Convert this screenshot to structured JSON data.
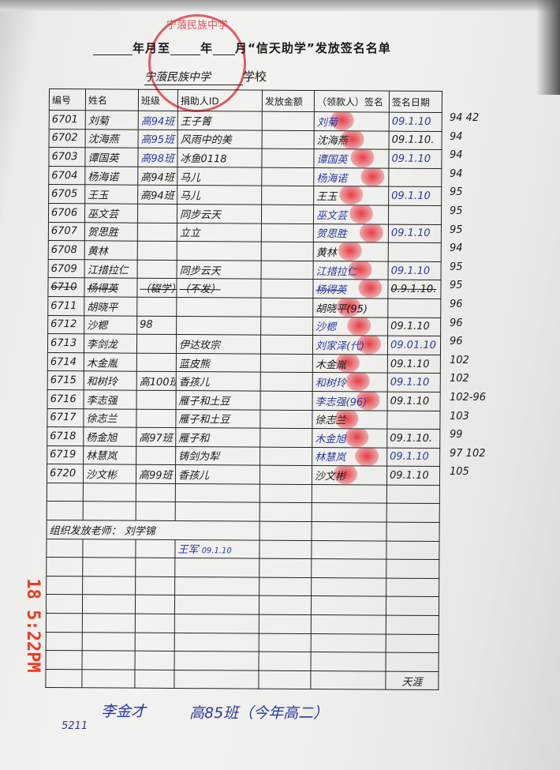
{
  "title": {
    "prefix": "年月至",
    "mid": "年",
    "suffix": "月“信天助学”发放签名名单"
  },
  "school": {
    "handwritten": "宁蒗民族中学",
    "suffix": "学校"
  },
  "stamp": {
    "text": "宁蒗民族中学"
  },
  "columns": [
    "编号",
    "姓名",
    "班级",
    "捐助人ID",
    "发放金额",
    "（领款人）签名",
    "签名日期"
  ],
  "rows": [
    {
      "id": "6701",
      "name": "刘菊",
      "class": "高94班",
      "donor": "王子箐",
      "sig": "刘菊",
      "date": "09.1.10",
      "side": "94 42",
      "blue": true
    },
    {
      "id": "6702",
      "name": "沈海燕",
      "class": "高95班",
      "donor": "风雨中的美",
      "sig": "沈海燕",
      "date": "09.1.10.",
      "side": "94",
      "blue": true
    },
    {
      "id": "6703",
      "name": "谭国英",
      "class": "高98班",
      "donor": "冰鱼0118",
      "sig": "谭国英",
      "date": "09.1.10",
      "side": "94",
      "blue": true
    },
    {
      "id": "6704",
      "name": "杨海诺",
      "class": "高94班",
      "donor": "马儿",
      "sig": "杨海诺",
      "date": "",
      "side": "94"
    },
    {
      "id": "6705",
      "name": "王玉",
      "class": "高94班",
      "donor": "马儿",
      "sig": "王玉",
      "date": "09.1.10",
      "side": "95"
    },
    {
      "id": "6706",
      "name": "巫文芸",
      "class": "",
      "donor": "同步云天",
      "sig": "巫文芸",
      "date": "",
      "side": "95"
    },
    {
      "id": "6707",
      "name": "贺思胜",
      "class": "",
      "donor": "立立",
      "sig": "贺思胜",
      "date": "09.1.10",
      "side": "95"
    },
    {
      "id": "6708",
      "name": "黄林",
      "class": "",
      "donor": "",
      "sig": "黄林",
      "date": "",
      "side": "94"
    },
    {
      "id": "6709",
      "name": "江措拉仁",
      "class": "",
      "donor": "同步云天",
      "sig": "江措拉仁",
      "date": "09.1.10",
      "side": "95"
    },
    {
      "id": "6710",
      "name": "杨得英",
      "class": "（辍学）",
      "donor": "（不发）",
      "sig": "杨得英",
      "date": "0.9.1.10.",
      "side": "95",
      "struck": true
    },
    {
      "id": "6711",
      "name": "胡晓平",
      "class": "",
      "donor": "",
      "sig": "胡晓平(95)",
      "date": "",
      "side": "96"
    },
    {
      "id": "6712",
      "name": "沙楒",
      "class": "98",
      "donor": "",
      "sig": "沙楒",
      "date": "09.1.10",
      "side": "96"
    },
    {
      "id": "6713",
      "name": "李剑龙",
      "class": "",
      "donor": "伊达玫宗",
      "sig": "刘家泽(代)",
      "date": "09.01.10",
      "side": "96"
    },
    {
      "id": "6714",
      "name": "木金胤",
      "class": "",
      "donor": "蓝皮熊",
      "sig": "木金胤",
      "date": "09.1.10",
      "side": "102"
    },
    {
      "id": "6715",
      "name": "和树玲",
      "class": "高100班",
      "donor": "香孩儿",
      "sig": "和树玲",
      "date": "09.1.10",
      "side": "102"
    },
    {
      "id": "6716",
      "name": "李志强",
      "class": "",
      "donor": "雁子和土豆",
      "sig": "李志强(96)",
      "date": "09.1.10",
      "side": "102-96"
    },
    {
      "id": "6717",
      "name": "徐志兰",
      "class": "",
      "donor": "雁子和土豆",
      "sig": "徐志兰",
      "date": "",
      "side": "103"
    },
    {
      "id": "6718",
      "name": "杨金旭",
      "class": "高97班",
      "donor": "雁子和",
      "sig": "木金旭",
      "date": "09.1.10.",
      "side": "99"
    },
    {
      "id": "6719",
      "name": "林慧岚",
      "class": "",
      "donor": "铸剑为犁",
      "sig": "林慧岚",
      "date": "09.1.10",
      "side": "97 102"
    },
    {
      "id": "6720",
      "name": "沙文彬",
      "class": "高99班",
      "donor": "香孩儿",
      "sig": "沙文彬",
      "date": "09.1.10",
      "side": "105"
    }
  ],
  "organizer": {
    "label": "组织发放老师：",
    "name": "刘学锦",
    "signature": "王军",
    "date": "09.1.10"
  },
  "last_row_note": "天涯",
  "bottom_notes": {
    "code": "5211",
    "name": "李金才",
    "class_note": "高85班（今年高二）"
  },
  "timestamp": "18 5:22PM",
  "colors": {
    "stamp": "#dc2832",
    "fingerprint": "#e61e28",
    "blue_ink": "#2a3aa0",
    "timestamp": "#f03a20"
  }
}
